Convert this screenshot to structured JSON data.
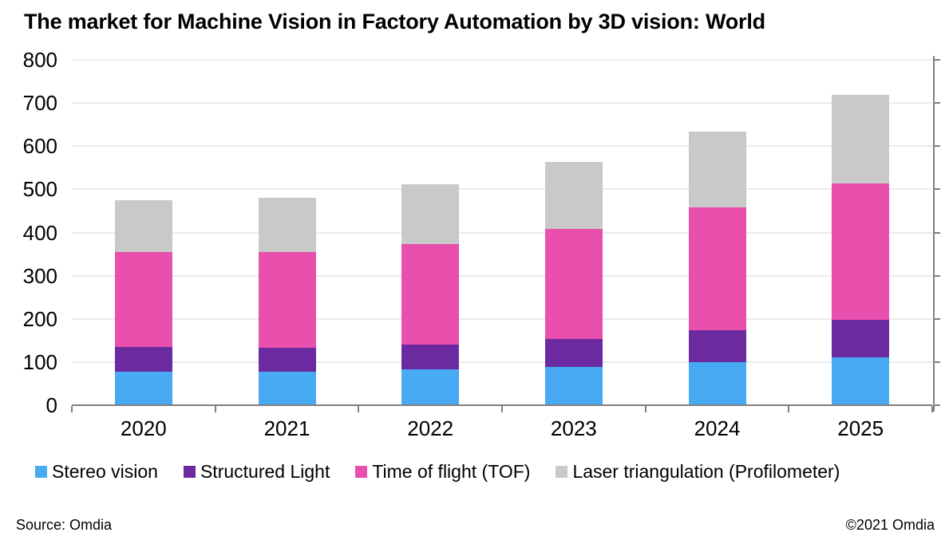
{
  "chart_data": {
    "type": "bar",
    "stacked": true,
    "title": "The market for Machine Vision in Factory Automation by 3D vision: World",
    "xlabel": "",
    "ylabel": "",
    "categories": [
      "2020",
      "2021",
      "2022",
      "2023",
      "2024",
      "2025"
    ],
    "series": [
      {
        "name": "Stereo vision",
        "color": "#47AAF3",
        "values": [
          78,
          78,
          83,
          89,
          100,
          111
        ]
      },
      {
        "name": "Structured Light",
        "color": "#6C2AA0",
        "values": [
          57,
          56,
          57,
          64,
          73,
          87
        ]
      },
      {
        "name": "Time of flight (TOF)",
        "color": "#E94FAC",
        "values": [
          219,
          220,
          233,
          256,
          285,
          316
        ]
      },
      {
        "name": "Laser triangulation (Profilometer)",
        "color": "#C9C9C9",
        "values": [
          121,
          127,
          139,
          155,
          176,
          205
        ]
      }
    ],
    "stack_totals": [
      475,
      481,
      512,
      564,
      634,
      719
    ],
    "ylim": [
      0,
      800
    ],
    "yticks": [
      0,
      100,
      200,
      300,
      400,
      500,
      600,
      700,
      800
    ],
    "grid": "horizontal",
    "legend_position": "bottom"
  },
  "colors": {
    "background": "#FFFFFF",
    "axis": "#808080",
    "gridline": "#EBEBEB",
    "text": "#000000"
  },
  "footer": {
    "source": "Source: Omdia",
    "copyright": "©2021 Omdia"
  }
}
